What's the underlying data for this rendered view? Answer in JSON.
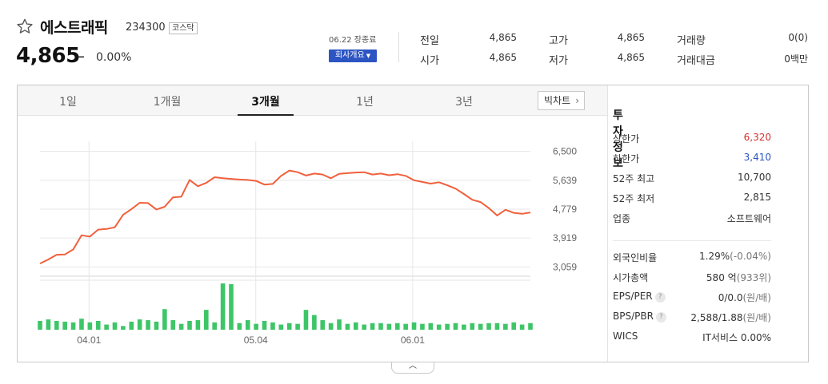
{
  "header": {
    "star_icon": "star-outline-icon",
    "name": "에스트래픽",
    "code": "234300",
    "market": "코스닥",
    "price": "4,865",
    "change_sign": "–",
    "change_rate": "0.00%",
    "date_note": "06.22 장종료",
    "company_info_button": "회사개요",
    "quotes": [
      {
        "label": "전일",
        "value": "4,865"
      },
      {
        "label": "고가",
        "value": "4,865"
      },
      {
        "label": "거래량",
        "value": "0(0)"
      },
      {
        "label": "시가",
        "value": "4,865"
      },
      {
        "label": "저가",
        "value": "4,865"
      },
      {
        "label": "거래대금",
        "value": "0백만"
      }
    ]
  },
  "chart": {
    "tabs": [
      "1일",
      "1개월",
      "3개월",
      "1년",
      "3년"
    ],
    "active_tab": "3개월",
    "big_chart_button": "빅차트",
    "colors": {
      "line": "#f0603c",
      "volume": "#3ec568",
      "grid": "#e6e6e6"
    }
  },
  "chart_data": {
    "type": "line",
    "title": "",
    "x_ticks": [
      "04.01",
      "05.04",
      "06.01"
    ],
    "y_ticks": [
      6500,
      5639,
      4779,
      3919,
      3059
    ],
    "ylim": [
      2900,
      6800
    ],
    "grid": true,
    "price_series": {
      "name": "",
      "values": [
        3160,
        3280,
        3420,
        3430,
        3580,
        4000,
        3960,
        4170,
        4190,
        4240,
        4610,
        4780,
        4970,
        4960,
        4770,
        4850,
        5130,
        5150,
        5650,
        5460,
        5560,
        5730,
        5700,
        5680,
        5660,
        5650,
        5620,
        5510,
        5530,
        5770,
        5930,
        5880,
        5780,
        5840,
        5810,
        5700,
        5830,
        5850,
        5870,
        5880,
        5810,
        5840,
        5790,
        5820,
        5770,
        5640,
        5590,
        5540,
        5580,
        5490,
        5390,
        5230,
        5060,
        4990,
        4810,
        4590,
        4760,
        4670,
        4640,
        4680
      ]
    },
    "volume_series": {
      "name": "",
      "values": [
        12,
        14,
        12,
        11,
        10,
        15,
        10,
        12,
        7,
        10,
        5,
        11,
        14,
        13,
        11,
        28,
        13,
        8,
        12,
        13,
        27,
        10,
        63,
        62,
        9,
        13,
        8,
        12,
        10,
        7,
        9,
        8,
        27,
        20,
        13,
        9,
        14,
        8,
        10,
        7,
        9,
        9,
        8,
        9,
        8,
        10,
        8,
        9,
        7,
        8,
        9,
        7,
        9,
        8,
        9,
        9,
        8,
        10,
        7,
        9
      ]
    }
  },
  "investment_info": {
    "title": "투자정보",
    "rows": [
      {
        "label": "상한가",
        "value": "6,320",
        "tone": "up"
      },
      {
        "label": "하한가",
        "value": "3,410",
        "tone": "down"
      },
      {
        "label": "52주 최고",
        "value": "10,700",
        "tone": ""
      },
      {
        "label": "52주 최저",
        "value": "2,815",
        "tone": ""
      },
      {
        "label": "업종",
        "value": "소프트웨어",
        "tone": ""
      }
    ],
    "rows2": [
      {
        "label": "외국인비율",
        "value": "1.29%",
        "unit": "(-0.04%)",
        "help": false
      },
      {
        "label": "시가총액",
        "value": "580 억",
        "unit": "(933위)",
        "help": false
      },
      {
        "label": "EPS/PER",
        "value": "0/0.0",
        "unit": "(원/배)",
        "help": true
      },
      {
        "label": "BPS/PBR",
        "value": "2,588/1.88",
        "unit": "(원/배)",
        "help": true
      },
      {
        "label": "WICS",
        "value": "IT서비스 0.00%",
        "unit": "",
        "help": false
      }
    ]
  },
  "collapse_icon": "chevron-up-icon"
}
